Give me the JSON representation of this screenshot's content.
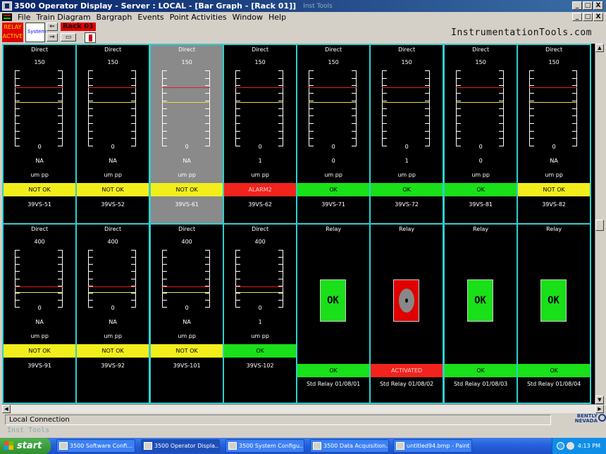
{
  "window": {
    "title": "3500 Operator Display - Server : LOCAL  - [Bar Graph - [Rack 01]]",
    "title_watermark": "Inst Tools",
    "controls": [
      "_",
      "□",
      "X"
    ]
  },
  "menu": {
    "items": [
      "File",
      "Train Diagram",
      "Bargraph",
      "Events",
      "Point Activities",
      "Window",
      "Help"
    ],
    "mdi_controls": [
      "_",
      "□",
      "X"
    ]
  },
  "toolbar": {
    "relay_active": [
      "RELAY",
      "ACTIVE"
    ],
    "system_label": "System",
    "rack_label": "Rack 01",
    "brand": "InstrumentationTools.com"
  },
  "channels_top": [
    {
      "mode": "Direct",
      "full_scale": "150",
      "zero": "0",
      "value": "NA",
      "unit": "um pp",
      "status": "NOT OK",
      "status_kind": "notok",
      "tag": "39VS-51",
      "danger_frac": 0.78,
      "alert_frac": 0.58
    },
    {
      "mode": "Direct",
      "full_scale": "150",
      "zero": "0",
      "value": "NA",
      "unit": "um pp",
      "status": "NOT OK",
      "status_kind": "notok",
      "tag": "39VS-52",
      "danger_frac": 0.78,
      "alert_frac": 0.58
    },
    {
      "mode": "Direct",
      "full_scale": "150",
      "zero": "0",
      "value": "NA",
      "unit": "um pp",
      "status": "NOT OK",
      "status_kind": "notok",
      "tag": "39VS-61",
      "danger_frac": 0.78,
      "alert_frac": 0.58,
      "selected": true
    },
    {
      "mode": "Direct",
      "full_scale": "150",
      "zero": "0",
      "value": "1",
      "unit": "um pp",
      "status": "ALARM2",
      "status_kind": "alarm",
      "tag": "39VS-62",
      "danger_frac": 0.78,
      "alert_frac": 0.58
    },
    {
      "mode": "Direct",
      "full_scale": "150",
      "zero": "0",
      "value": "0",
      "unit": "um pp",
      "status": "OK",
      "status_kind": "ok",
      "tag": "39VS-71",
      "danger_frac": 0.78,
      "alert_frac": 0.58
    },
    {
      "mode": "Direct",
      "full_scale": "150",
      "zero": "0",
      "value": "1",
      "unit": "um pp",
      "status": "OK",
      "status_kind": "ok",
      "tag": "39VS-72",
      "danger_frac": 0.78,
      "alert_frac": 0.58
    },
    {
      "mode": "Direct",
      "full_scale": "150",
      "zero": "0",
      "value": "0",
      "unit": "um pp",
      "status": "OK",
      "status_kind": "ok",
      "tag": "39VS-81",
      "danger_frac": 0.78,
      "alert_frac": 0.58
    },
    {
      "mode": "Direct",
      "full_scale": "150",
      "zero": "0",
      "value": "NA",
      "unit": "um pp",
      "status": "NOT OK",
      "status_kind": "notok",
      "tag": "39VS-82",
      "danger_frac": 0.78,
      "alert_frac": 0.58
    }
  ],
  "channels_bottom": [
    {
      "type": "bar",
      "mode": "Direct",
      "full_scale": "400",
      "zero": "0",
      "value": "NA",
      "unit": "um pp",
      "status": "NOT OK",
      "status_kind": "notok",
      "tag": "39VS-91",
      "danger_frac": 0.36,
      "alert_frac": 0.27
    },
    {
      "type": "bar",
      "mode": "Direct",
      "full_scale": "400",
      "zero": "0",
      "value": "NA",
      "unit": "um pp",
      "status": "NOT OK",
      "status_kind": "notok",
      "tag": "39VS-92",
      "danger_frac": 0.36,
      "alert_frac": 0.27
    },
    {
      "type": "bar",
      "mode": "Direct",
      "full_scale": "400",
      "zero": "0",
      "value": "NA",
      "unit": "um pp",
      "status": "NOT OK",
      "status_kind": "notok",
      "tag": "39VS-101",
      "danger_frac": 0.36,
      "alert_frac": 0.27
    },
    {
      "type": "bar",
      "mode": "Direct",
      "full_scale": "400",
      "zero": "0",
      "value": "1",
      "unit": "um pp",
      "status": "OK",
      "status_kind": "ok",
      "tag": "39VS-102",
      "danger_frac": 0.36,
      "alert_frac": 0.27
    },
    {
      "type": "relay",
      "mode": "Relay",
      "box": "OK",
      "activated": false,
      "status": "OK",
      "status_kind": "ok",
      "tag": "Std Relay 01/08/01"
    },
    {
      "type": "relay",
      "mode": "Relay",
      "box": "",
      "activated": true,
      "status": "ACTIVATED",
      "status_kind": "alarm",
      "tag": "Std Relay 01/08/02"
    },
    {
      "type": "relay",
      "mode": "Relay",
      "box": "OK",
      "activated": false,
      "status": "OK",
      "status_kind": "ok",
      "tag": "Std Relay 01/08/03"
    },
    {
      "type": "relay",
      "mode": "Relay",
      "box": "OK",
      "activated": false,
      "status": "OK",
      "status_kind": "ok",
      "tag": "Std Relay 01/08/04"
    }
  ],
  "colors": {
    "grid_border": "#2fd0d0",
    "ok": "#19e019",
    "notok": "#f2ee1c",
    "alarm": "#f0231d",
    "danger_line": "#e02020",
    "alert_line": "#e6e04a"
  },
  "statusbar": {
    "connection": "Local Connection",
    "brand": [
      "BENTLY",
      "NEVADA"
    ],
    "watermark": "Inst Tools"
  },
  "taskbar": {
    "start": "start",
    "tasks": [
      {
        "label": "3500 Software Confi...",
        "active": false
      },
      {
        "label": "3500 Operator Displa...",
        "active": true
      },
      {
        "label": "3500 System Configu...",
        "active": false
      },
      {
        "label": "3500 Data Acquisition...",
        "active": false
      },
      {
        "label": "untitled94.bmp - Paint",
        "active": false
      }
    ],
    "clock": "4:13 PM"
  }
}
